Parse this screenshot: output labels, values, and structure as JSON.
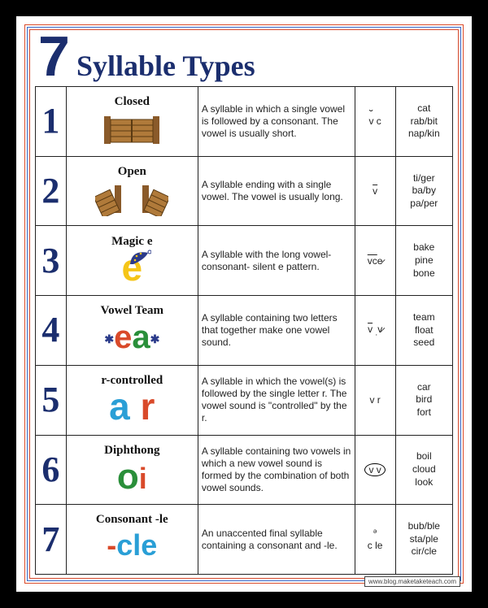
{
  "title_number": "7",
  "title_text": "Syllable Types",
  "colors": {
    "navy": "#1b2e6e",
    "frame_red": "#d94a2a",
    "frame_blue": "#3466c9",
    "yellow": "#f5c518",
    "orange": "#d94a2a",
    "green": "#2a8f3a",
    "cyan": "#2a9fd6",
    "background": "#ffffff",
    "page_bg": "#000000"
  },
  "rows": [
    {
      "num": "1",
      "name": "Closed",
      "desc": "A syllable in which a single vowel is followed by a consonant. The vowel is usually short.",
      "pattern_html": "<span class='breve'>v</span> c",
      "examples": "cat\nrab/bit\nnap/kin",
      "art": "gate_closed"
    },
    {
      "num": "2",
      "name": "Open",
      "desc": "A syllable ending with a single vowel. The vowel is usually long.",
      "pattern_html": "<span class='macron'>v</span>",
      "examples": "ti/ger\nba/by\npa/per",
      "art": "gate_open"
    },
    {
      "num": "3",
      "name": "Magic e",
      "desc": "A syllable with the long vowel-consonant- silent e pattern.",
      "pattern_html": "<span class='macron'>vc</span>e&#x0337;",
      "examples": "bake\npine\nbone",
      "art": "magic_e"
    },
    {
      "num": "4",
      "name": "Vowel Team",
      "desc": "A syllable containing two letters that together make one vowel sound.",
      "pattern_html": "<span class='macron'>v</span> <sub>.</sub>v&#x0337;",
      "examples": "team\nfloat\nseed",
      "art": "ea"
    },
    {
      "num": "5",
      "name": "r-controlled",
      "desc": "A syllable in which the vowel(s) is followed by the single letter r. The vowel sound is \"controlled\" by the r.",
      "pattern_html": "v r",
      "examples": "car\nbird\nfort",
      "art": "ar"
    },
    {
      "num": "6",
      "name": "Diphthong",
      "desc": "A syllable containing two vowels in which a new vowel sound is formed by the combination of both vowel sounds.",
      "pattern_html": "<span style='border:1px solid #000;border-radius:50%;padding:0 4px;'>v v</span>",
      "examples": "boil\ncloud\nlook",
      "art": "oi"
    },
    {
      "num": "7",
      "name": "Consonant -le",
      "desc": "An unaccented final syllable containing a consonant and -le.",
      "pattern_html": "<sup style='font-size:8px'>&#601;</sup><br>c le",
      "examples": "bub/ble\nsta/ple\ncir/cle",
      "art": "cle"
    }
  ],
  "source": "www.blog.maketaketeach.com"
}
